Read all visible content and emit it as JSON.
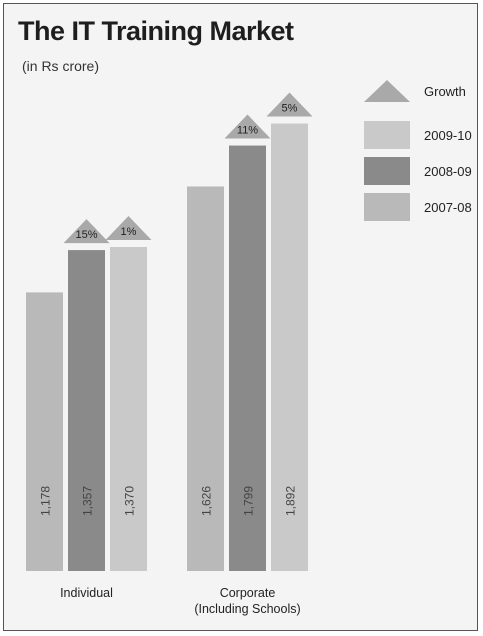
{
  "chart_data": {
    "type": "bar",
    "title": "The IT Training Market",
    "subtitle": "(in Rs crore)",
    "categories": [
      "Individual",
      "Corporate\n(Including Schools)"
    ],
    "series": [
      {
        "name": "2007-08",
        "values": [
          1178,
          1626
        ]
      },
      {
        "name": "2008-09",
        "values": [
          1357,
          1799
        ]
      },
      {
        "name": "2009-10",
        "values": [
          1370,
          1892
        ]
      }
    ],
    "growth": [
      {
        "category": "Individual",
        "values": [
          "15%",
          "1%"
        ]
      },
      {
        "category": "Corporate\n(Including Schools)",
        "values": [
          "11%",
          "5%"
        ]
      }
    ],
    "value_labels": [
      [
        "1,178",
        "1,357",
        "1,370"
      ],
      [
        "1,626",
        "1,799",
        "1,892"
      ]
    ],
    "legend": [
      {
        "label": "Growth",
        "shape": "triangle",
        "color": "#a9a9a9"
      },
      {
        "label": "2009-10",
        "shape": "square",
        "color": "#c9c9c9"
      },
      {
        "label": "2008-09",
        "shape": "square",
        "color": "#8a8a8a"
      },
      {
        "label": "2007-08",
        "shape": "square",
        "color": "#b9b9b9"
      }
    ],
    "colors": {
      "2007-08": "#b9b9b9",
      "2008-09": "#8a8a8a",
      "2009-10": "#c9c9c9",
      "growth": "#a9a9a9"
    },
    "xlabel": "",
    "ylabel": "",
    "ylim": [
      0,
      2000
    ],
    "legend_position": "top-right",
    "grid": false
  }
}
